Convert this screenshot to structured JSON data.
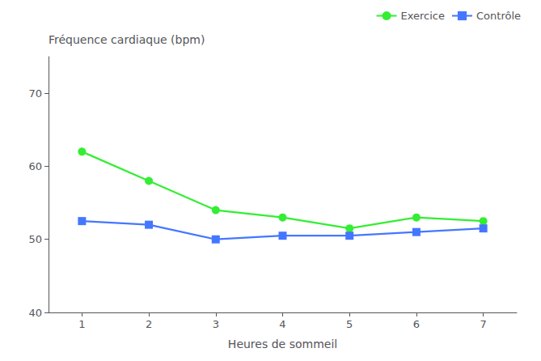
{
  "chart_data": {
    "type": "line",
    "y_label": "Fréquence cardiaque (bpm)",
    "x_label": "Heures de sommeil",
    "x": [
      1,
      2,
      3,
      4,
      5,
      6,
      7
    ],
    "series": [
      {
        "name": "Exercice",
        "color": "#33ee33",
        "marker": "circle",
        "values": [
          62,
          58,
          54,
          53,
          51.5,
          53,
          52.5
        ]
      },
      {
        "name": "Contrôle",
        "color": "#4477ff",
        "marker": "square",
        "values": [
          52.5,
          52,
          50,
          50.5,
          50.5,
          51,
          51.5
        ]
      }
    ],
    "xlim": [
      0.5,
      7.5
    ],
    "xticks": [
      1,
      2,
      3,
      4,
      5,
      6,
      7
    ],
    "ylim": [
      40,
      75
    ],
    "yticks": [
      40,
      50,
      60,
      70
    ],
    "grid": false,
    "legend": "upper right"
  }
}
